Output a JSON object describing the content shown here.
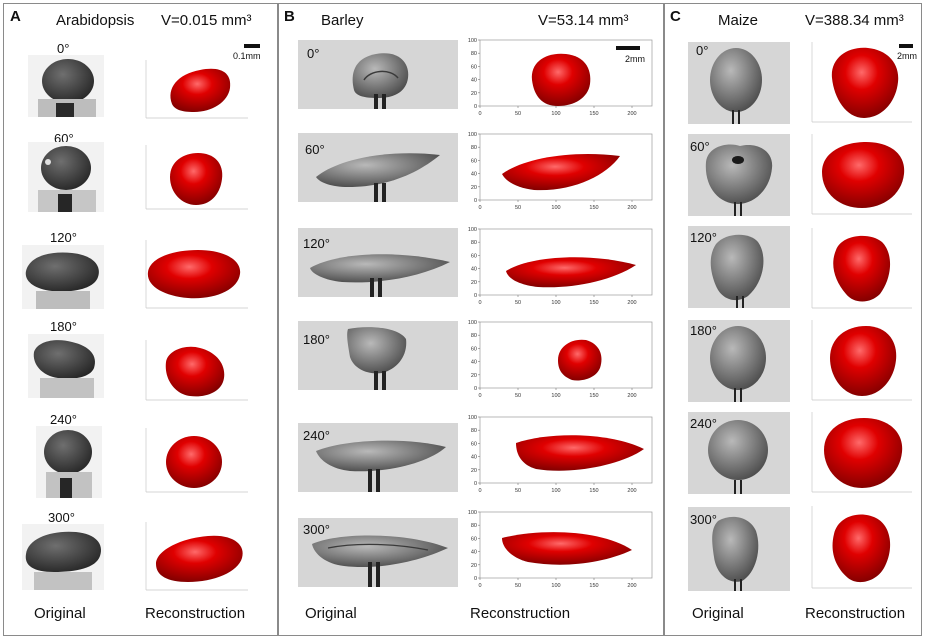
{
  "panels": [
    {
      "letter": "A",
      "species": "Arabidopsis",
      "volume": "V=0.015 mm³",
      "scale_bar": "0.1mm",
      "angles": [
        "0°",
        "60°",
        "120°",
        "180°",
        "240°",
        "300°"
      ],
      "col_original": "Original",
      "col_reconstruction": "Reconstruction"
    },
    {
      "letter": "B",
      "species": "Barley",
      "volume": "V=53.14 mm³",
      "scale_bar": "2mm",
      "angles": [
        "0°",
        "60°",
        "120°",
        "180°",
        "240°",
        "300°"
      ],
      "col_original": "Original",
      "col_reconstruction": "Reconstruction",
      "axis_ticks_x": [
        "0",
        "50",
        "100",
        "150",
        "200"
      ],
      "axis_ticks_y": [
        "0",
        "20",
        "40",
        "60",
        "80",
        "100"
      ]
    },
    {
      "letter": "C",
      "species": "Maize",
      "volume": "V=388.34 mm³",
      "scale_bar": "2mm",
      "angles": [
        "0°",
        "60°",
        "120°",
        "180°",
        "240°",
        "300°"
      ],
      "col_original": "Original",
      "col_reconstruction": "Reconstruction"
    }
  ],
  "colors": {
    "reconstruction": "#d40000",
    "seed": "#777777",
    "photo_bg": "#d6d6d6",
    "frame": "#8a8a8a"
  }
}
